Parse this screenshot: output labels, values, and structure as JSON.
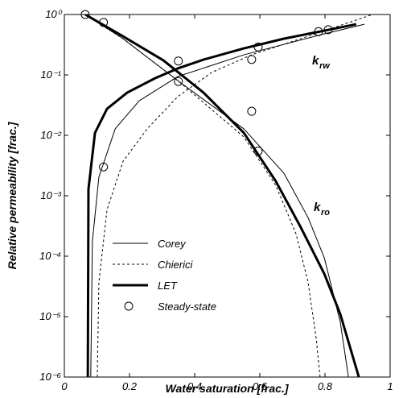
{
  "chart_data": {
    "type": "line",
    "xlabel": "Water saturation [frac.]",
    "ylabel": "Relative permeability [frac.]",
    "xlim": [
      0,
      1
    ],
    "xticks": [
      0,
      0.2,
      0.4,
      0.6,
      0.8,
      1
    ],
    "ylim": [
      1e-06,
      1
    ],
    "yscale": "log",
    "yticks": [
      {
        "value": 1e-06,
        "label": "10⁻⁶"
      },
      {
        "value": 1e-05,
        "label": "10⁻⁵"
      },
      {
        "value": 0.0001,
        "label": "10⁻⁴"
      },
      {
        "value": 0.001,
        "label": "10⁻³"
      },
      {
        "value": 0.01,
        "label": "10⁻²"
      },
      {
        "value": 0.1,
        "label": "10⁻¹"
      },
      {
        "value": 1,
        "label": "10⁰"
      }
    ],
    "legend": "lower left",
    "annotations": [
      {
        "text": "k",
        "sub": "rw"
      },
      {
        "text": "k",
        "sub": "ro"
      }
    ],
    "series": [
      {
        "name": "Corey",
        "color": "#000000",
        "style": "solid",
        "width": 1,
        "lines": [
          {
            "x": [
              0.081,
              0.086,
              0.106,
              0.156,
              0.23,
              0.348,
              0.551,
              0.798,
              0.921
            ],
            "values": [
              1e-06,
              0.000174,
              0.00204,
              0.0128,
              0.0374,
              0.094,
              0.215,
              0.479,
              0.69
            ]
          },
          {
            "x": [
              0.064,
              0.18,
              0.348,
              0.551,
              0.674,
              0.748,
              0.798,
              0.847,
              0.872
            ],
            "values": [
              1,
              0.398,
              0.0807,
              0.0128,
              0.00236,
              0.000437,
              9.4e-05,
              8.1e-06,
              1e-06
            ]
          }
        ]
      },
      {
        "name": "Chierici",
        "color": "#000000",
        "style": "dashed",
        "width": 1,
        "lines": [
          {
            "x": [
              0.101,
              0.106,
              0.131,
              0.18,
              0.254,
              0.348,
              0.452,
              0.575,
              0.748,
              0.896,
              0.946
            ],
            "values": [
              1e-06,
              3.7e-05,
              0.00059,
              0.0037,
              0.0128,
              0.0437,
              0.11,
              0.215,
              0.436,
              0.81,
              1
            ]
          },
          {
            "x": [
              0.064,
              0.18,
              0.348,
              0.551,
              0.649,
              0.711,
              0.748,
              0.773,
              0.785
            ],
            "values": [
              1,
              0.398,
              0.0807,
              0.0094,
              0.00149,
              0.000236,
              3.74e-05,
              4.37e-06,
              1e-06
            ]
          }
        ]
      },
      {
        "name": "LET",
        "color": "#000000",
        "style": "solid",
        "width": 3,
        "lines": [
          {
            "x": [
              0.072,
              0.074,
              0.094,
              0.131,
              0.193,
              0.279,
              0.348,
              0.427,
              0.551,
              0.674,
              0.798,
              0.896
            ],
            "values": [
              1e-06,
              0.00128,
              0.011,
              0.0275,
              0.051,
              0.0885,
              0.128,
              0.179,
              0.275,
              0.398,
              0.54,
              0.69
            ]
          },
          {
            "x": [
              0.064,
              0.18,
              0.304,
              0.427,
              0.551,
              0.649,
              0.723,
              0.798,
              0.847,
              0.904
            ],
            "values": [
              1,
              0.436,
              0.174,
              0.051,
              0.011,
              0.00174,
              0.00032,
              5.1e-05,
              1.1e-05,
              1e-06
            ]
          }
        ]
      },
      {
        "name": "Steady-state",
        "color": "#000000",
        "marker": "circle",
        "x": [
          0.064,
          0.12,
          0.12,
          0.35,
          0.35,
          0.575,
          0.575,
          0.595,
          0.595,
          0.78,
          0.81
        ],
        "values": [
          1,
          0.74,
          0.003,
          0.17,
          0.078,
          0.18,
          0.025,
          0.29,
          0.0055,
          0.52,
          0.56
        ]
      }
    ]
  }
}
